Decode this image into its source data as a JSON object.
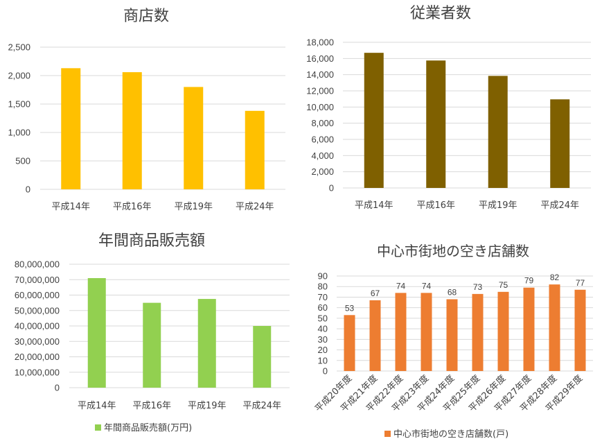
{
  "chart_data": [
    {
      "type": "bar",
      "title": "商店数",
      "categories": [
        "平成14年",
        "平成16年",
        "平成19年",
        "平成24年"
      ],
      "series": [
        {
          "values": [
            2130,
            2060,
            1800,
            1380
          ]
        }
      ],
      "color": "#FFC000",
      "ylim": [
        0,
        2500
      ],
      "yticks": [
        "0",
        "500",
        "1,000",
        "1,500",
        "2,000",
        "2,500"
      ],
      "grid": true,
      "legend": null
    },
    {
      "type": "bar",
      "title": "従業者数",
      "categories": [
        "平成14年",
        "平成16年",
        "平成19年",
        "平成24年"
      ],
      "series": [
        {
          "values": [
            16700,
            15750,
            13850,
            10950
          ]
        }
      ],
      "color": "#7F6000",
      "ylim": [
        0,
        18000
      ],
      "yticks": [
        "0",
        "2,000",
        "4,000",
        "6,000",
        "8,000",
        "10,000",
        "12,000",
        "14,000",
        "16,000",
        "18,000"
      ],
      "grid": true,
      "legend": null
    },
    {
      "type": "bar",
      "title": "年間商品販売額",
      "categories": [
        "平成14年",
        "平成16年",
        "平成19年",
        "平成24年"
      ],
      "series": [
        {
          "name": "年間商品販売額(万円)",
          "values": [
            71000000,
            55000000,
            57500000,
            40000000
          ]
        }
      ],
      "color": "#92D050",
      "ylim": [
        0,
        80000000
      ],
      "yticks": [
        "0",
        "10,000,000",
        "20,000,000",
        "30,000,000",
        "40,000,000",
        "50,000,000",
        "60,000,000",
        "70,000,000",
        "80,000,000"
      ],
      "grid": true,
      "legend": "bottom"
    },
    {
      "type": "bar",
      "title": "中心市街地の空き店舗数",
      "categories": [
        "平成20年度",
        "平成21年度",
        "平成22年度",
        "平成23年度",
        "平成24年度",
        "平成25年度",
        "平成26年度",
        "平成27年度",
        "平成28年度",
        "平成29年度"
      ],
      "series": [
        {
          "name": "中心市街地の空き店舗数(戸)",
          "values": [
            53,
            67,
            74,
            74,
            68,
            73,
            75,
            79,
            82,
            77
          ]
        }
      ],
      "data_labels": [
        "53",
        "67",
        "74",
        "74",
        "68",
        "73",
        "75",
        "79",
        "82",
        "77"
      ],
      "color": "#ED7D31",
      "ylim": [
        0,
        90
      ],
      "yticks": [
        "0",
        "10",
        "20",
        "30",
        "40",
        "50",
        "60",
        "70",
        "80",
        "90"
      ],
      "grid": true,
      "legend": "bottom"
    }
  ]
}
